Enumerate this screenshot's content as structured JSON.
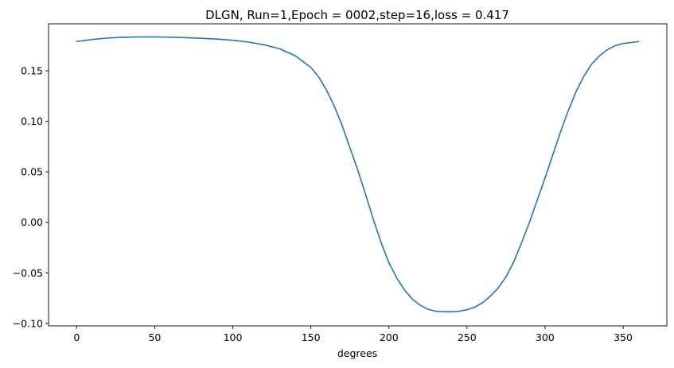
{
  "chart_data": {
    "type": "line",
    "title": "DLGN, Run=1,Epoch = 0002,step=16,loss = 0.417",
    "xlabel": "degrees",
    "ylabel": "",
    "xlim": [
      -18,
      378
    ],
    "ylim": [
      -0.1025,
      0.1965
    ],
    "xticks": [
      0,
      50,
      100,
      150,
      200,
      250,
      300,
      350
    ],
    "xtick_labels": [
      "0",
      "50",
      "100",
      "150",
      "200",
      "250",
      "300",
      "350"
    ],
    "yticks": [
      0.15,
      0.1,
      0.05,
      0.0,
      -0.05,
      -0.1
    ],
    "ytick_labels": [
      "0.15",
      "0.10",
      "0.05",
      "0.00",
      "−0.05",
      "−0.10"
    ],
    "grid": false,
    "series": [
      {
        "color": "#1f77b4",
        "x": [
          0,
          10,
          20,
          30,
          40,
          50,
          60,
          70,
          80,
          90,
          100,
          110,
          120,
          130,
          140,
          150,
          155,
          160,
          165,
          170,
          175,
          180,
          185,
          190,
          195,
          200,
          205,
          210,
          215,
          220,
          225,
          230,
          235,
          240,
          245,
          250,
          255,
          260,
          265,
          270,
          275,
          280,
          285,
          290,
          295,
          300,
          305,
          310,
          315,
          320,
          325,
          330,
          335,
          340,
          345,
          350,
          355,
          360
        ],
        "y": [
          0.179,
          0.181,
          0.1825,
          0.1832,
          0.1836,
          0.1836,
          0.1833,
          0.1828,
          0.1822,
          0.1814,
          0.1802,
          0.1785,
          0.1758,
          0.1718,
          0.1649,
          0.1533,
          0.144,
          0.131,
          0.115,
          0.096,
          0.074,
          0.052,
          0.028,
          0.003,
          -0.02,
          -0.04,
          -0.055,
          -0.067,
          -0.076,
          -0.082,
          -0.086,
          -0.088,
          -0.0885,
          -0.0885,
          -0.088,
          -0.0865,
          -0.084,
          -0.0795,
          -0.073,
          -0.065,
          -0.054,
          -0.039,
          -0.02,
          0.0,
          0.022,
          0.044,
          0.067,
          0.09,
          0.111,
          0.13,
          0.145,
          0.157,
          0.165,
          0.171,
          0.175,
          0.177,
          0.178,
          0.179
        ]
      }
    ]
  }
}
